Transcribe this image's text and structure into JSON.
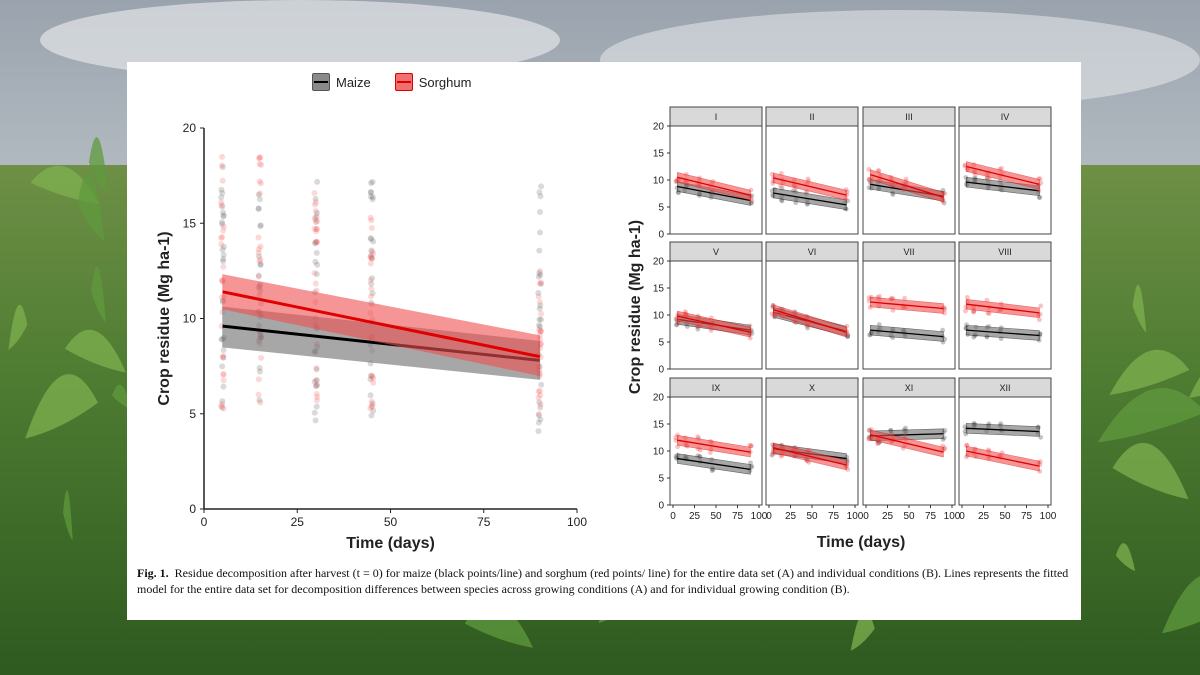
{
  "legend": {
    "maize": "Maize",
    "sorghum": "Sorghum"
  },
  "caption": {
    "label": "Fig. 1.",
    "text": "Residue decomposition after harvest (t = 0) for maize (black points/line) and sorghum (red points/ line) for the entire data set (A) and individual conditions (B). Lines represents the fitted model for the entire data set for decomposition differences between species across growing conditions (A) and for individual growing condition (B)."
  },
  "colors": {
    "maize": "#000000",
    "sorghum": "#e00000",
    "maize_band": "#6e6e6e",
    "sorghum_band": "#f05050",
    "strip": "#d9d9d9"
  },
  "chart_data": [
    {
      "type": "scatter",
      "panel": "A",
      "xlabel": "Time (days)",
      "ylabel": "Crop residue (Mg ha-1)",
      "xlim": [
        0,
        100
      ],
      "ylim": [
        0,
        20
      ],
      "xticks": [
        "0",
        "25",
        "50",
        "75",
        "100"
      ],
      "yticks": [
        "0",
        "5",
        "10",
        "15",
        "20"
      ],
      "time_points": [
        5,
        15,
        30,
        45,
        90
      ],
      "series": [
        {
          "name": "Maize",
          "fit": {
            "x": [
              5,
              90
            ],
            "y": [
              9.6,
              7.8
            ]
          },
          "ci_low": [
            8.5,
            6.8
          ],
          "ci_high": [
            10.6,
            8.8
          ],
          "point_range": {
            "5": [
              4.8,
              18.6
            ],
            "15": [
              4.8,
              16.6
            ],
            "30": [
              4.5,
              17.6
            ],
            "45": [
              4.5,
              17.5
            ],
            "90": [
              4.0,
              17.0
            ]
          }
        },
        {
          "name": "Sorghum",
          "fit": {
            "x": [
              5,
              90
            ],
            "y": [
              11.4,
              8.0
            ]
          },
          "ci_low": [
            10.5,
            7.0
          ],
          "ci_high": [
            12.3,
            9.1
          ],
          "point_range": {
            "5": [
              5.2,
              19.4
            ],
            "15": [
              5.0,
              19.0
            ],
            "30": [
              5.5,
              16.8
            ],
            "45": [
              4.6,
              15.4
            ],
            "90": [
              4.2,
              13.0
            ]
          }
        }
      ]
    },
    {
      "type": "scatter",
      "panel": "B",
      "xlabel": "Time (days)",
      "ylabel": "Crop residue (Mg ha-1)",
      "xlim": [
        0,
        100
      ],
      "ylim": [
        0,
        20
      ],
      "xticks": [
        "0",
        "25",
        "50",
        "75",
        "100"
      ],
      "yticks": [
        "0",
        "5",
        "10",
        "15",
        "20"
      ],
      "facets": [
        {
          "label": "I",
          "maize": [
            8.8,
            6.2
          ],
          "sorghum": [
            10.5,
            7.2
          ]
        },
        {
          "label": "II",
          "maize": [
            7.6,
            5.4
          ],
          "sorghum": [
            10.4,
            7.2
          ]
        },
        {
          "label": "III",
          "maize": [
            9.2,
            7.0
          ],
          "sorghum": [
            11.0,
            6.8
          ]
        },
        {
          "label": "IV",
          "maize": [
            9.6,
            8.0
          ],
          "sorghum": [
            12.5,
            9.2
          ]
        },
        {
          "label": "V",
          "maize": [
            9.2,
            7.2
          ],
          "sorghum": [
            9.8,
            6.8
          ]
        },
        {
          "label": "VI",
          "maize": [
            10.5,
            7.0
          ],
          "sorghum": [
            11.0,
            6.8
          ]
        },
        {
          "label": "VII",
          "maize": [
            7.2,
            6.0
          ],
          "sorghum": [
            12.4,
            11.2
          ]
        },
        {
          "label": "VIII",
          "maize": [
            7.2,
            6.2
          ],
          "sorghum": [
            12.0,
            10.4
          ]
        },
        {
          "label": "IX",
          "maize": [
            8.6,
            6.6
          ],
          "sorghum": [
            12.0,
            9.8
          ]
        },
        {
          "label": "X",
          "maize": [
            10.4,
            8.6
          ],
          "sorghum": [
            10.6,
            7.4
          ]
        },
        {
          "label": "XI",
          "maize": [
            12.8,
            13.2
          ],
          "sorghum": [
            13.0,
            9.8
          ]
        },
        {
          "label": "XII",
          "maize": [
            14.2,
            13.6
          ],
          "sorghum": [
            10.0,
            7.2
          ]
        }
      ],
      "time_points": [
        5,
        15,
        30,
        45,
        90
      ]
    }
  ]
}
